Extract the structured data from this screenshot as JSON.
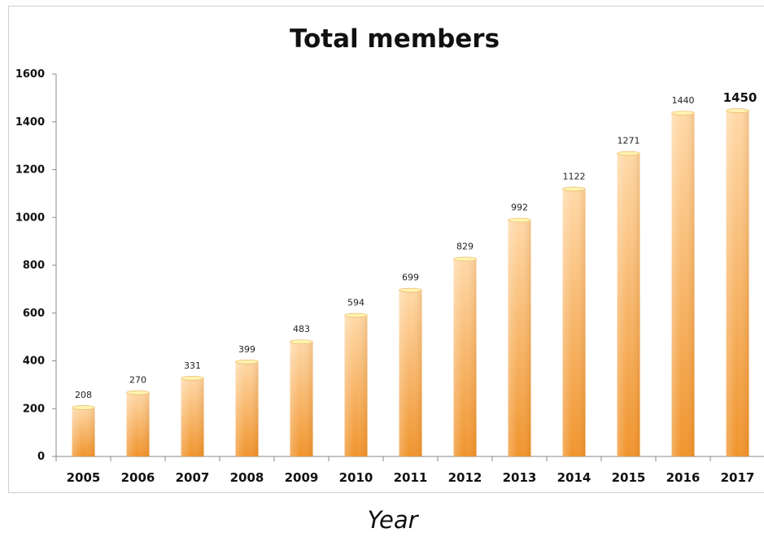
{
  "chart_data": {
    "type": "bar",
    "title": "Total members",
    "xlabel": "Year",
    "ylabel": "",
    "ylim": [
      0,
      1600
    ],
    "yticks": [
      "0",
      "200",
      "400",
      "600",
      "800",
      "1000",
      "1200",
      "1400",
      "1600"
    ],
    "categories": [
      "2005",
      "2006",
      "2007",
      "2008",
      "2009",
      "2010",
      "2011",
      "2012",
      "2013",
      "2014",
      "2015",
      "2016",
      "2017"
    ],
    "values": [
      208,
      270,
      331,
      399,
      483,
      594,
      699,
      829,
      992,
      1122,
      1271,
      1440,
      1450
    ],
    "data_labels": [
      "208",
      "270",
      "331",
      "399",
      "483",
      "594",
      "699",
      "829",
      "992",
      "1122",
      "1271",
      "1440",
      "1450"
    ],
    "emphasized_label_index": 12,
    "grid": false,
    "legend": "none",
    "bar_color_top": "#ffd9a8",
    "bar_color_bottom": "#f0932b",
    "bar_cap_color": "#fff3b0"
  }
}
